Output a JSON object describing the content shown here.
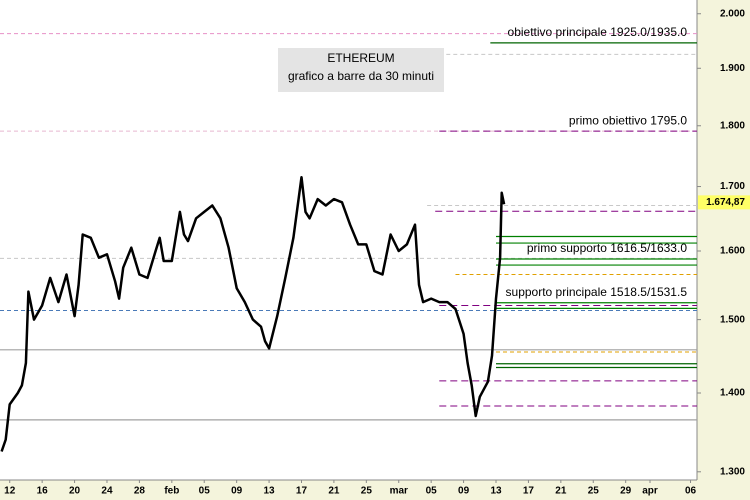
{
  "chart_data": {
    "type": "line",
    "title": "ETHEREUM",
    "subtitle": "grafico a barre da 30 minuti",
    "log": true,
    "xlim": [
      -1.2,
      84.8
    ],
    "xticks": [
      {
        "value": 0,
        "label": "12"
      },
      {
        "value": 4,
        "label": "16"
      },
      {
        "value": 8,
        "label": "20"
      },
      {
        "value": 12,
        "label": "24"
      },
      {
        "value": 16,
        "label": "28"
      },
      {
        "value": 20,
        "label": "feb"
      },
      {
        "value": 24,
        "label": "05"
      },
      {
        "value": 28,
        "label": "09"
      },
      {
        "value": 32,
        "label": "13"
      },
      {
        "value": 36,
        "label": "17"
      },
      {
        "value": 40,
        "label": "21"
      },
      {
        "value": 44,
        "label": "25"
      },
      {
        "value": 48,
        "label": "mar"
      },
      {
        "value": 52,
        "label": "05"
      },
      {
        "value": 56,
        "label": "09"
      },
      {
        "value": 60,
        "label": "13"
      },
      {
        "value": 64,
        "label": "17"
      },
      {
        "value": 68,
        "label": "21"
      },
      {
        "value": 72,
        "label": "25"
      },
      {
        "value": 76,
        "label": "29"
      },
      {
        "value": 79,
        "label": "apr"
      },
      {
        "value": 84,
        "label": "06"
      }
    ],
    "ylim": [
      1290,
      2026
    ],
    "yticks": [
      {
        "value": 1300,
        "label": "1.300"
      },
      {
        "value": 1400,
        "label": "1.400"
      },
      {
        "value": 1500,
        "label": "1.500"
      },
      {
        "value": 1600,
        "label": "1.600"
      },
      {
        "value": 1700,
        "label": "1.700"
      },
      {
        "value": 1800,
        "label": "1.800"
      },
      {
        "value": 1900,
        "label": "1.900"
      },
      {
        "value": 2000,
        "label": "2.000"
      }
    ],
    "last_price": {
      "value": 1674.87,
      "label": "1.674,87"
    },
    "series": [
      {
        "color": "#000000",
        "x": [
          -1,
          -0.5,
          0,
          1,
          1.5,
          2,
          2.3,
          3,
          4,
          5,
          6,
          7,
          8,
          8.5,
          9,
          10,
          11,
          12,
          13,
          13.5,
          14,
          15,
          16,
          17,
          18,
          18.5,
          19,
          20,
          21,
          21.5,
          22,
          23,
          24,
          25,
          26,
          27,
          28,
          29,
          30,
          31,
          31.5,
          32,
          33,
          34,
          35,
          36,
          36.5,
          37,
          38,
          39,
          40,
          41,
          42,
          43,
          44,
          45,
          46,
          47,
          48,
          49,
          50,
          50.5,
          51,
          52,
          53,
          54,
          55,
          56,
          56.5,
          57,
          57.5,
          58,
          59,
          59.5,
          60,
          60.5,
          60.7,
          61
        ],
        "values": [
          1325,
          1340,
          1385,
          1400,
          1410,
          1440,
          1540,
          1500,
          1520,
          1560,
          1525,
          1565,
          1505,
          1550,
          1625,
          1620,
          1590,
          1595,
          1555,
          1530,
          1575,
          1605,
          1565,
          1560,
          1600,
          1620,
          1585,
          1585,
          1660,
          1625,
          1615,
          1650,
          1660,
          1670,
          1650,
          1605,
          1545,
          1525,
          1500,
          1490,
          1470,
          1460,
          1505,
          1560,
          1620,
          1715,
          1660,
          1650,
          1680,
          1670,
          1680,
          1675,
          1640,
          1610,
          1610,
          1570,
          1565,
          1625,
          1600,
          1610,
          1640,
          1550,
          1525,
          1530,
          1525,
          1525,
          1515,
          1480,
          1440,
          1410,
          1370,
          1395,
          1415,
          1450,
          1530,
          1590,
          1690,
          1672
        ]
      }
    ],
    "levels": [
      {
        "value": 1963,
        "color": "#e890c8",
        "style": "dashed"
      },
      {
        "value": 1946,
        "color": "#006400",
        "style": "solid",
        "from": 59.3,
        "label": "obiettivo principale 1925.0/1935.0"
      },
      {
        "value": 1925,
        "color": "#c8c8c8",
        "style": "dashed",
        "from": 53
      },
      {
        "value": 1791,
        "color": "#e8b8d0",
        "style": "dashed"
      },
      {
        "value": 1791,
        "color": "#800080",
        "style": "dashed",
        "from": 53,
        "label": "primo obiettivo 1795.0"
      },
      {
        "value": 1670,
        "color": "#c8c8c8",
        "style": "dashed",
        "from": 51.5
      },
      {
        "value": 1661,
        "color": "#800080",
        "style": "dashed",
        "from": 52.5
      },
      {
        "value": 1622,
        "color": "#008000",
        "style": "solid",
        "from": 60
      },
      {
        "value": 1612,
        "color": "#008000",
        "style": "solid",
        "from": 60
      },
      {
        "value": 1589,
        "color": "#c8c8c8",
        "style": "dashed"
      },
      {
        "value": 1588,
        "color": "#008000",
        "style": "solid",
        "from": 60,
        "label": "primo supporto 1616.5/1633.0"
      },
      {
        "value": 1579,
        "color": "#008000",
        "style": "solid",
        "from": 60
      },
      {
        "value": 1565,
        "color": "#e0a000",
        "style": "dashed",
        "from": 55
      },
      {
        "value": 1524,
        "color": "#008000",
        "style": "solid",
        "from": 60,
        "label": "supporto principale 1518.5/1531.5"
      },
      {
        "value": 1520,
        "color": "#800080",
        "style": "dashed",
        "from": 53
      },
      {
        "value": 1516,
        "color": "#008000",
        "style": "solid",
        "from": 60
      },
      {
        "value": 1513,
        "color": "#4a7ab8",
        "style": "dashed"
      },
      {
        "value": 1458,
        "color": "#a0a0a0",
        "style": "solid"
      },
      {
        "value": 1455,
        "color": "#e0a000",
        "style": "dashed",
        "from": 60
      },
      {
        "value": 1439,
        "color": "#006400",
        "style": "solid",
        "from": 60
      },
      {
        "value": 1434,
        "color": "#006400",
        "style": "solid",
        "from": 60
      },
      {
        "value": 1416,
        "color": "#800080",
        "style": "dashed",
        "from": 53
      },
      {
        "value": 1383,
        "color": "#800080",
        "style": "dashed",
        "from": 53
      },
      {
        "value": 1365,
        "color": "#a0a0a0",
        "style": "solid"
      }
    ]
  }
}
